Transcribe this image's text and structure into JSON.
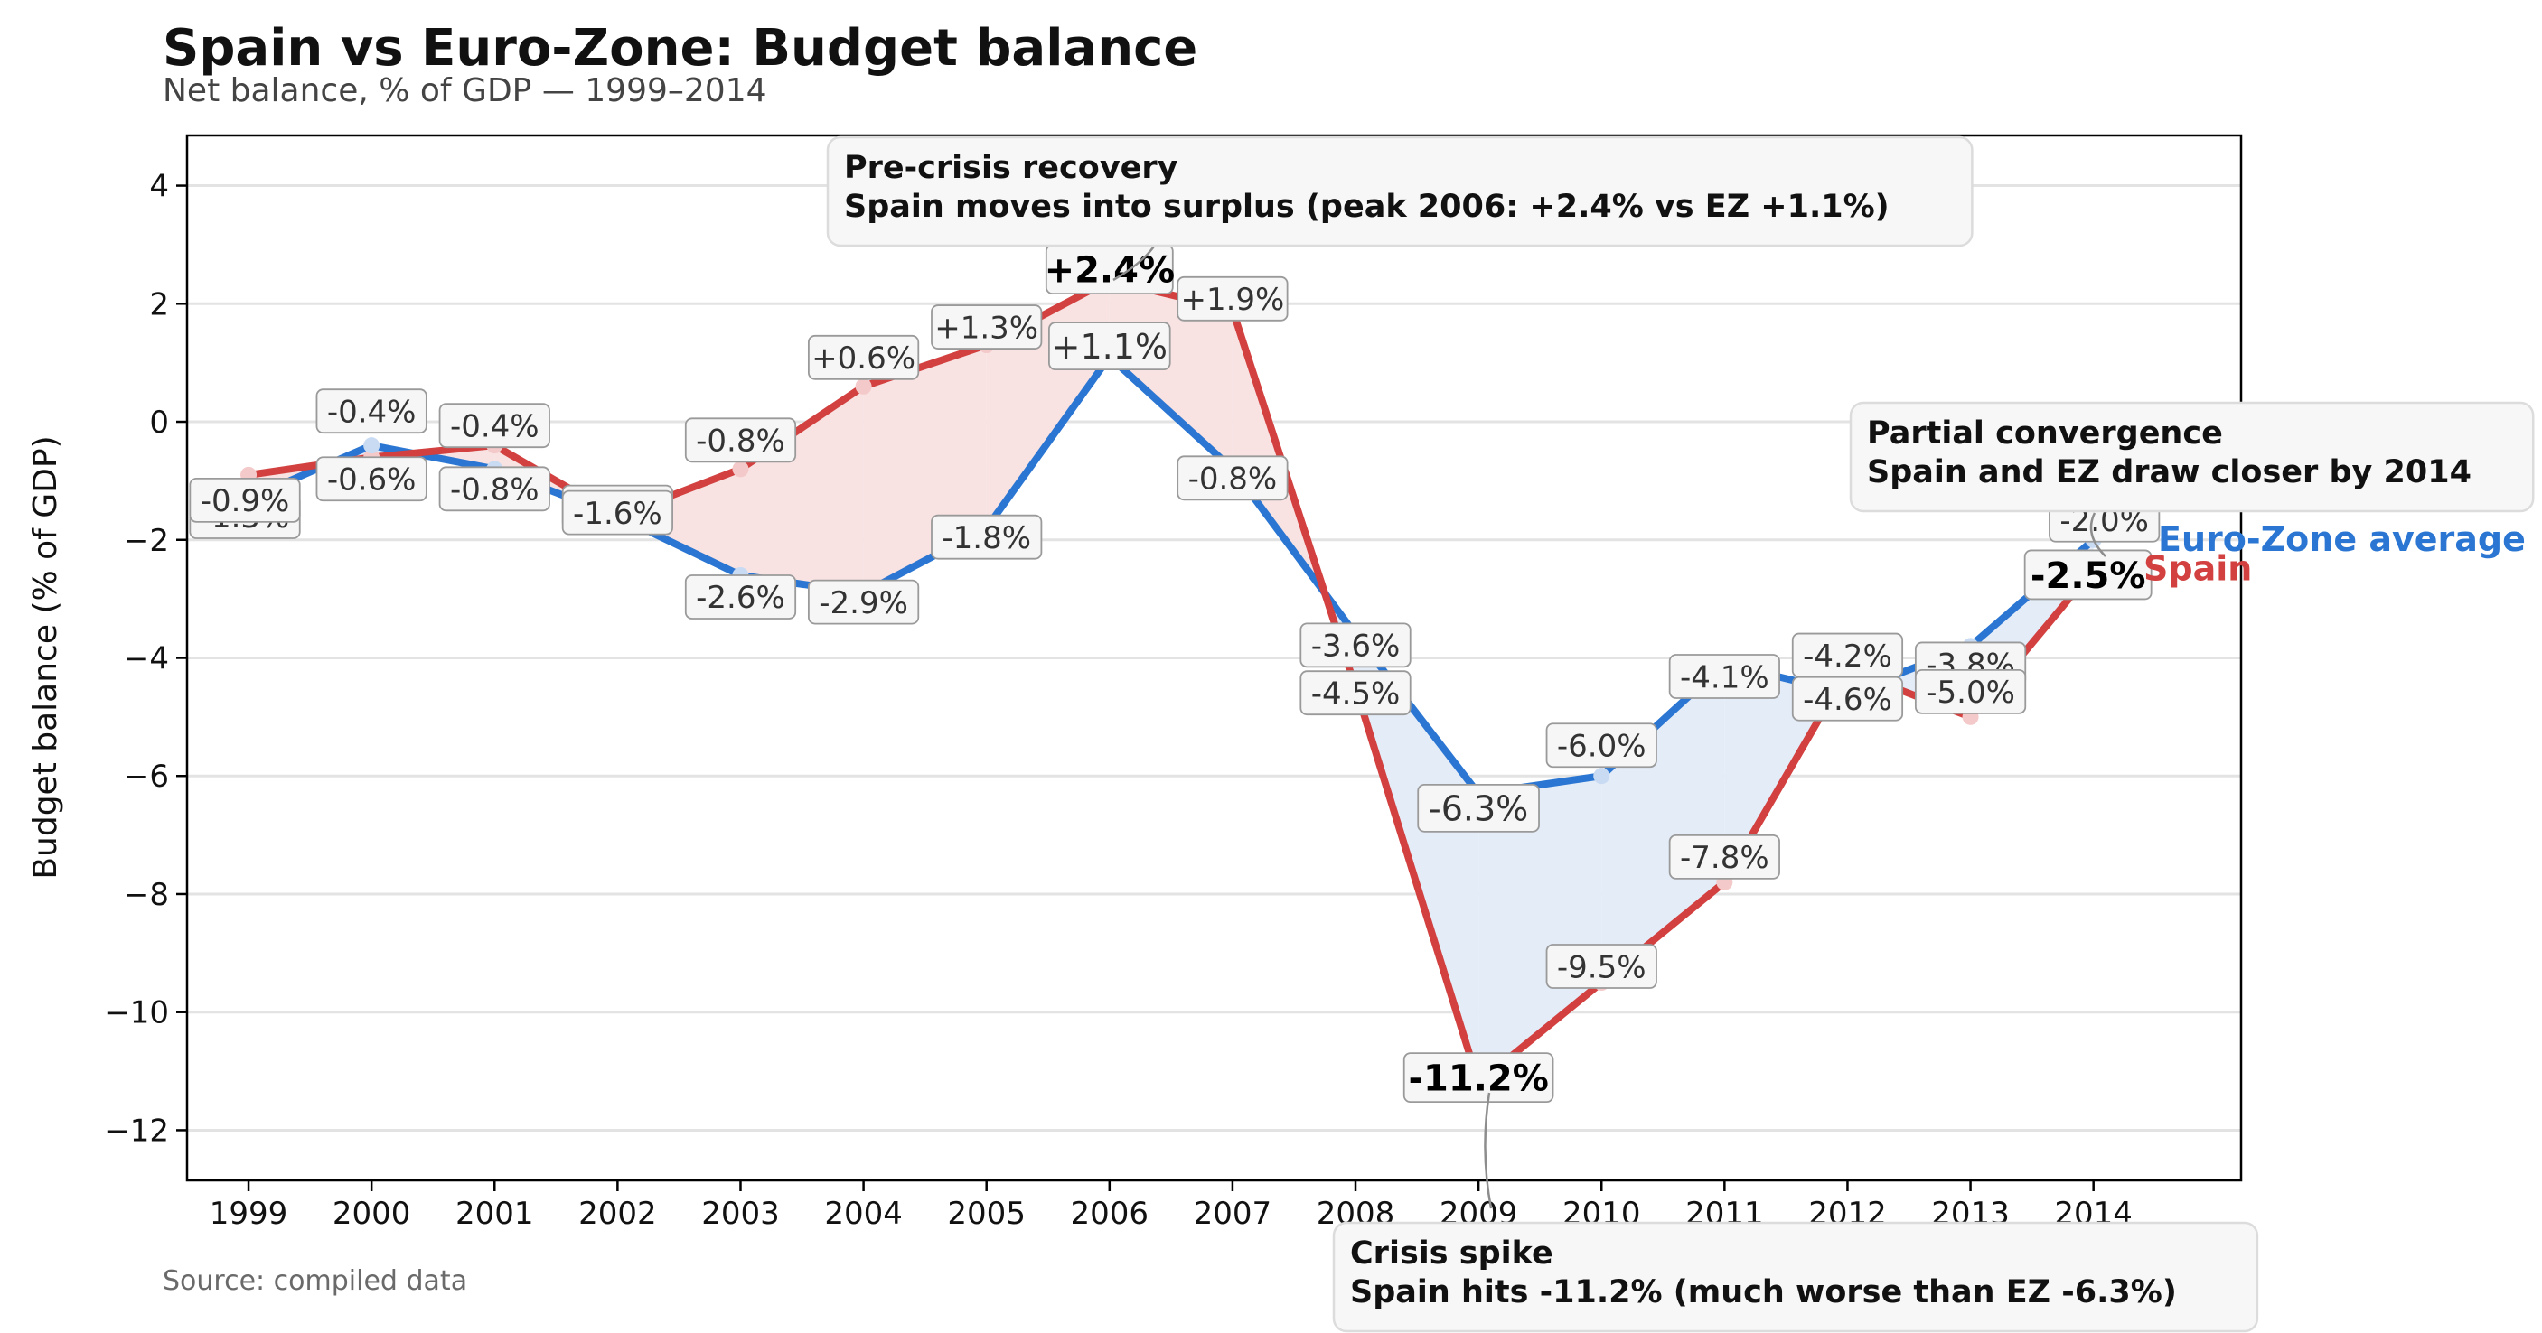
{
  "title": "Spain vs Euro-Zone: Budget balance",
  "subtitle": "Net balance, % of GDP — 1999–2014",
  "source": "Source: compiled data",
  "colors": {
    "spain": "#d2403f",
    "euro_zone": "#2a76d2",
    "fill_spain_above": "#f8e2e2",
    "fill_ez_above": "#e4ecf8"
  },
  "chart_data": {
    "type": "line",
    "title": "Spain vs Euro-Zone: Budget balance",
    "subtitle": "Net balance, % of GDP — 1999–2014",
    "xlabel": "",
    "ylabel": "Budget balance (% of GDP)",
    "x": [
      1999,
      2000,
      2001,
      2002,
      2003,
      2004,
      2005,
      2006,
      2007,
      2008,
      2009,
      2010,
      2011,
      2012,
      2013,
      2014
    ],
    "x_tick_labels": [
      "1999",
      "2000",
      "2001",
      "2002",
      "2003",
      "2004",
      "2005",
      "2006",
      "2007",
      "2008",
      "2009",
      "2010",
      "2011",
      "2012",
      "2013",
      "2014"
    ],
    "y_ticks": [
      4,
      2,
      0,
      -2,
      -4,
      -6,
      -8,
      -10,
      -12
    ],
    "y_tick_labels": [
      "4",
      "2",
      "0",
      "−2",
      "−4",
      "−6",
      "−8",
      "−10",
      "−12"
    ],
    "ylim": [
      -12.85,
      4.85
    ],
    "xlim": [
      1998.5,
      2015.2
    ],
    "grid": "horizontal",
    "series": [
      {
        "name": "Spain",
        "color": "#d2403f",
        "values": [
          -0.9,
          -0.6,
          -0.4,
          -1.6,
          -0.8,
          0.6,
          1.3,
          2.4,
          1.9,
          -4.5,
          -11.2,
          -9.5,
          -7.8,
          -4.2,
          -5.0,
          -2.5
        ],
        "labels": [
          "-0.9%",
          "-0.6%",
          "-0.4%",
          "-1.6%",
          "-0.8%",
          "+0.6%",
          "+1.3%",
          "+2.4%",
          "+1.9%",
          "-4.5%",
          "-11.2%",
          "-9.5%",
          "-7.8%",
          "-4.2%",
          "-5.0%",
          "-2.5%"
        ]
      },
      {
        "name": "Euro-Zone average",
        "color": "#2a76d2",
        "values": [
          -1.3,
          -0.4,
          -0.8,
          -1.6,
          -2.6,
          -2.9,
          -1.8,
          1.1,
          -0.8,
          -3.6,
          -6.3,
          -6.0,
          -4.1,
          -4.6,
          -3.8,
          -2.0
        ],
        "labels": [
          "-1.3%",
          "-0.4%",
          "-0.8%",
          "-1.6%",
          "-2.6%",
          "-2.9%",
          "-1.8%",
          "+1.1%",
          "-0.8%",
          "-3.6%",
          "-6.3%",
          "-6.0%",
          "-4.1%",
          "-4.6%",
          "-3.8%",
          "-2.0%"
        ]
      }
    ],
    "annotations": [
      {
        "title": "Pre-crisis recovery",
        "text": "Spain moves into surplus (peak 2006: +2.4% vs EZ +1.1%)",
        "year": 2006,
        "value": 2.4
      },
      {
        "title": "Partial convergence",
        "text": "Spain and EZ draw closer by 2014",
        "year": 2014,
        "value": -2.5
      },
      {
        "title": "Crisis spike",
        "text": "Spain hits -11.2% (much worse than EZ -6.3%)",
        "year": 2009,
        "value": -11.2
      }
    ]
  }
}
